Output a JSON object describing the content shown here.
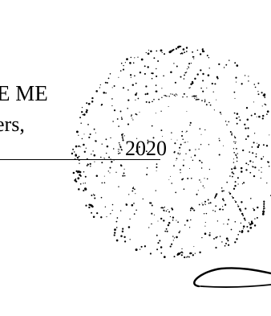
{
  "document": {
    "line_1": "E ME",
    "line_2": "ers,",
    "line_3": "2020"
  },
  "seal": {
    "type": "embossed notary seal",
    "color": "#000000"
  },
  "signature": {
    "color": "#000000"
  }
}
